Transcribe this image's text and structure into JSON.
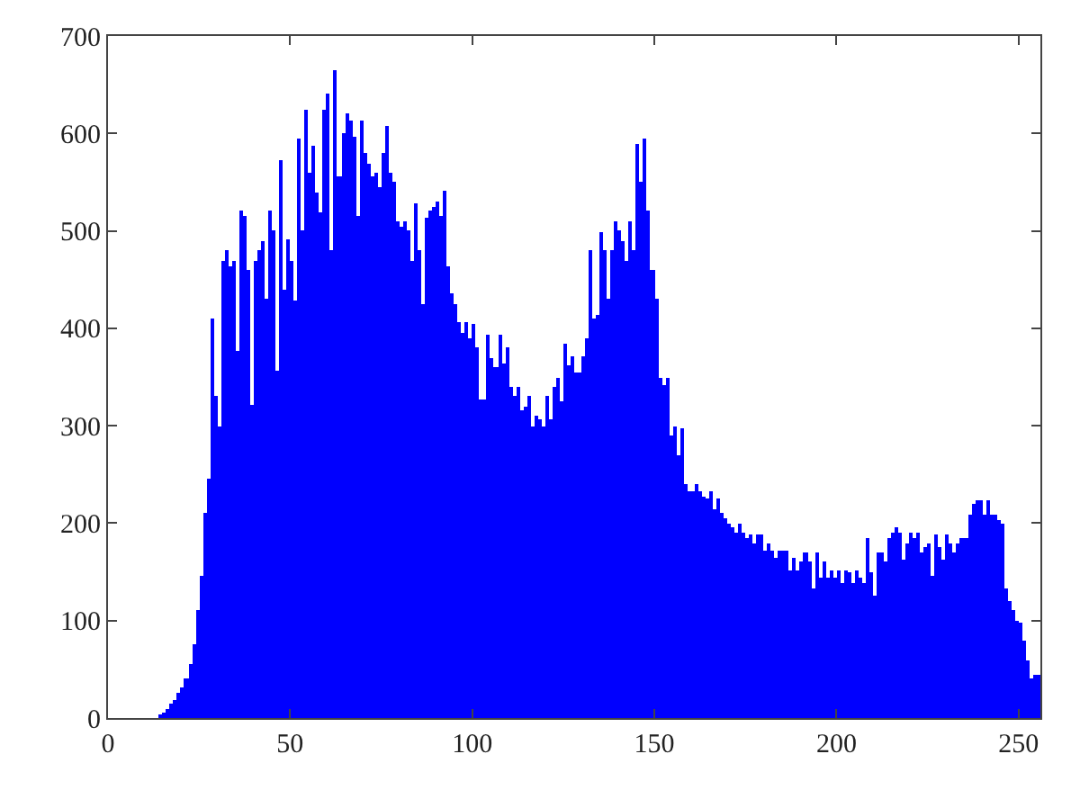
{
  "chart_data": {
    "type": "histogram",
    "color": "#0000ff",
    "bins": [
      14,
      15,
      16,
      17,
      18,
      19,
      20,
      21,
      22,
      23,
      24,
      25,
      26,
      27,
      28,
      29,
      30,
      31,
      32,
      33,
      34,
      35,
      36,
      37,
      38,
      39,
      40,
      41,
      42,
      43,
      44,
      45,
      46,
      47,
      48,
      49,
      50,
      51,
      52,
      53,
      54,
      55,
      56,
      57,
      58,
      59,
      60,
      61,
      62,
      63,
      64,
      65,
      66,
      67,
      68,
      69,
      70,
      71,
      72,
      73,
      74,
      75,
      76,
      77,
      78,
      79,
      80,
      81,
      82,
      83,
      84,
      85,
      86,
      87,
      88,
      89,
      90,
      91,
      92,
      93,
      94,
      95,
      96,
      97,
      98,
      99,
      100,
      101,
      102,
      103,
      104,
      105,
      106,
      107,
      108,
      109,
      110,
      111,
      112,
      113,
      114,
      115,
      116,
      117,
      118,
      119,
      120,
      121,
      122,
      123,
      124,
      125,
      126,
      127,
      128,
      129,
      130,
      131,
      132,
      133,
      134,
      135,
      136,
      137,
      138,
      139,
      140,
      141,
      142,
      143,
      144,
      145,
      146,
      147,
      148,
      149,
      150,
      151,
      152,
      153,
      154,
      155,
      156,
      157,
      158,
      159,
      160,
      161,
      162,
      163,
      164,
      165,
      166,
      167,
      168,
      169,
      170,
      171,
      172,
      173,
      174,
      175,
      176,
      177,
      178,
      179,
      180,
      181,
      182,
      183,
      184,
      185,
      186,
      187,
      188,
      189,
      190,
      191,
      192,
      193,
      194,
      195,
      196,
      197,
      198,
      199,
      200,
      201,
      202,
      203,
      204,
      205,
      206,
      207,
      208,
      209,
      210,
      211,
      212,
      213,
      214,
      215,
      216,
      217,
      218,
      219,
      220,
      221,
      222,
      223,
      224,
      225,
      226,
      227,
      228,
      229,
      230,
      231,
      232,
      233,
      234,
      235,
      236,
      237,
      238,
      239,
      240,
      241,
      242,
      243,
      244,
      245,
      246,
      247,
      248,
      249,
      250,
      251,
      252,
      253,
      254,
      255,
      256
    ],
    "values": [
      3,
      6,
      10,
      14,
      19,
      25,
      32,
      40,
      55,
      75,
      110,
      145,
      210,
      245,
      410,
      330,
      300,
      470,
      480,
      463,
      470,
      376,
      520,
      516,
      460,
      322,
      470,
      480,
      490,
      430,
      520,
      500,
      357,
      572,
      440,
      492,
      470,
      429,
      594,
      500,
      625,
      560,
      588,
      540,
      519,
      625,
      640,
      481,
      665,
      556,
      600,
      620,
      613,
      597,
      516,
      613,
      580,
      569,
      556,
      560,
      545,
      580,
      607,
      560,
      551,
      510,
      505,
      510,
      500,
      470,
      528,
      480,
      425,
      513,
      520,
      525,
      530,
      515,
      541,
      463,
      435,
      425,
      406,
      395,
      406,
      390,
      405,
      380,
      326,
      326,
      393,
      370,
      360,
      393,
      363,
      380,
      340,
      330,
      340,
      315,
      320,
      330,
      300,
      310,
      307,
      300,
      330,
      307,
      340,
      350,
      325,
      385,
      362,
      372,
      355,
      355,
      372,
      390,
      480,
      410,
      414,
      498,
      480,
      430,
      480,
      510,
      500,
      490,
      470,
      510,
      480,
      590,
      550,
      595,
      520,
      460,
      430,
      350,
      341,
      350,
      290,
      300,
      270,
      298,
      240,
      232,
      232,
      240,
      232,
      228,
      226,
      232,
      215,
      226,
      210,
      205,
      200,
      195,
      191,
      200,
      191,
      185,
      189,
      180,
      189,
      189,
      172,
      180,
      172,
      165,
      172,
      172,
      172,
      152,
      165,
      152,
      160,
      170,
      160,
      133,
      170,
      144,
      160,
      144,
      152,
      144,
      152,
      139,
      152,
      150,
      139,
      152,
      144,
      139,
      185,
      150,
      125,
      170,
      170,
      160,
      185,
      190,
      195,
      190,
      163,
      180,
      191,
      185,
      191,
      170,
      175,
      180,
      145,
      189,
      175,
      163,
      189,
      180,
      170,
      180,
      185,
      185,
      208,
      219,
      223,
      223,
      208,
      223,
      208,
      208,
      204,
      200,
      133,
      120,
      110,
      100,
      97,
      80,
      60,
      41,
      45,
      45
    ],
    "xlim": [
      0,
      256
    ],
    "ylim": [
      0,
      700
    ],
    "xticks": [
      0,
      50,
      100,
      150,
      200,
      250
    ],
    "yticks": [
      0,
      100,
      200,
      300,
      400,
      500,
      600,
      700
    ]
  }
}
